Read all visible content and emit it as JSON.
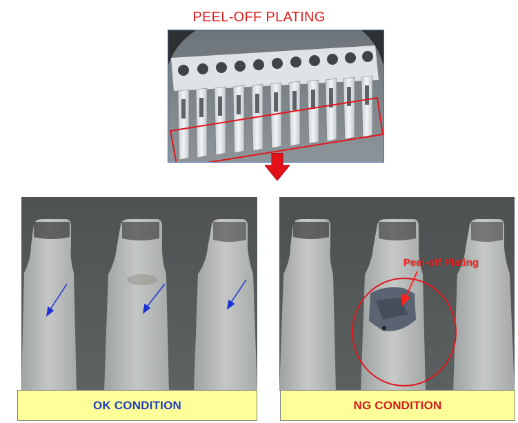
{
  "header": {
    "title": "PEEL-OFF PLATING"
  },
  "panels": {
    "ok": {
      "label": "OK CONDITION"
    },
    "ng": {
      "label": "NG CONDITION",
      "callout": "Peel-off Plating"
    }
  },
  "colors": {
    "title": "#e11b1b",
    "highlight_box": "#e0161c",
    "ok_text": "#1f3fbf",
    "ng_text": "#d41c1c",
    "label_bg": "#ffff99",
    "indicator_arrow": "#1a2fd6",
    "defect_circle": "#e0161c"
  },
  "icons": {
    "down_arrow": "red-down-arrow-icon"
  }
}
